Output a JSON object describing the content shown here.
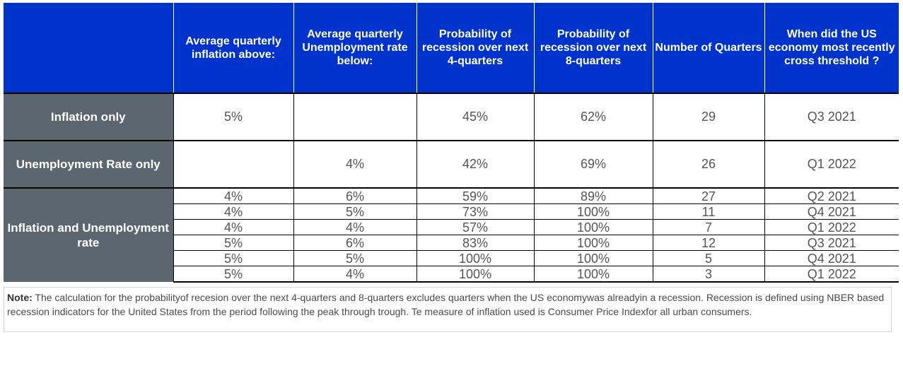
{
  "table": {
    "headers": [
      "",
      "Average quarterly inflation above:",
      "Average quarterly Unemployment rate below:",
      "Probability of recession over next 4-quarters",
      "Probability of recession over next 8-quarters",
      "Number of Quarters",
      "When did the US economy most recently cross threshold ?"
    ],
    "groups": [
      {
        "label": "Inflation only",
        "rows": [
          [
            "5%",
            "",
            "45%",
            "62%",
            "29",
            "Q3 2021"
          ]
        ]
      },
      {
        "label": "Unemployment Rate only",
        "rows": [
          [
            "",
            "4%",
            "42%",
            "69%",
            "26",
            "Q1 2022"
          ]
        ]
      },
      {
        "label": "Inflation and Unemployment rate",
        "rows": [
          [
            "4%",
            "6%",
            "59%",
            "89%",
            "27",
            "Q2 2021"
          ],
          [
            "4%",
            "5%",
            "73%",
            "100%",
            "11",
            "Q4 2021"
          ],
          [
            "4%",
            "4%",
            "57%",
            "100%",
            "7",
            "Q1 2022"
          ],
          [
            "5%",
            "6%",
            "83%",
            "100%",
            "12",
            "Q3 2021"
          ],
          [
            "5%",
            "5%",
            "100%",
            "100%",
            "5",
            "Q4 2021"
          ],
          [
            "5%",
            "4%",
            "100%",
            "100%",
            "3",
            "Q1 2022"
          ]
        ]
      }
    ]
  },
  "note": {
    "label": "Note:",
    "text": " The calculation for the probabilityof recesion over the next 4-quarters and 8-quarters excludes quarters when the US economywas alreadyin a recession. Recession is defined using NBER based recession indicators for the United States from the period following the peak through trough. Te measure of inflation used is Consumer Price Indexfor all urban consumers."
  },
  "colors": {
    "header_bg": "#0033cc",
    "label_bg": "#5c666e",
    "cell_text": "#555555"
  }
}
